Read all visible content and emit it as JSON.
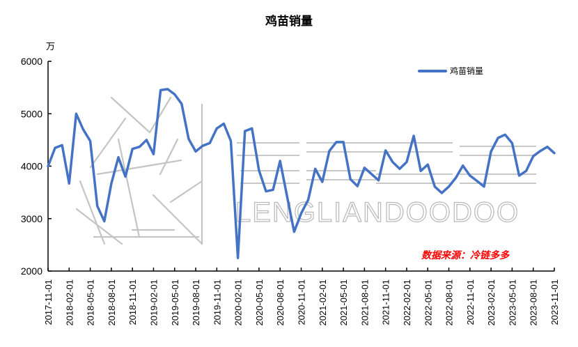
{
  "title": "鸡苗销量",
  "unit": "万",
  "legend": {
    "label": "鸡苗销量",
    "color": "#4472C4"
  },
  "source": "数据来源：冷链多多",
  "watermark": {
    "text": "LENGLIANDOODOO",
    "cn": "冷链多多"
  },
  "chart_data": {
    "type": "line",
    "title": "鸡苗销量",
    "xlabel": "",
    "ylabel": "万",
    "ylim": [
      2000,
      6000
    ],
    "yticks": [
      2000,
      3000,
      4000,
      5000,
      6000
    ],
    "xtick_labels": [
      "2017-11-01",
      "2018-02-01",
      "2018-05-01",
      "2018-08-01",
      "2018-11-01",
      "2019-02-01",
      "2019-05-01",
      "2019-08-01",
      "2019-11-01",
      "2020-02-01",
      "2020-05-01",
      "2020-08-01",
      "2020-11-01",
      "2021-02-01",
      "2021-05-01",
      "2021-08-01",
      "2021-11-01",
      "2022-02-01",
      "2022-05-01",
      "2022-08-01",
      "2022-11-01",
      "2023-02-01",
      "2023-05-01",
      "2023-08-01",
      "2023-11-01"
    ],
    "grid": false,
    "legend_position": "top-right",
    "series": [
      {
        "name": "鸡苗销量",
        "color": "#4472C4",
        "x": [
          "2017-11",
          "2017-12",
          "2018-01",
          "2018-02",
          "2018-03",
          "2018-04",
          "2018-05",
          "2018-06",
          "2018-07",
          "2018-08",
          "2018-09",
          "2018-10",
          "2018-11",
          "2018-12",
          "2019-01",
          "2019-02",
          "2019-03",
          "2019-04",
          "2019-05",
          "2019-06",
          "2019-07",
          "2019-08",
          "2019-09",
          "2019-10",
          "2019-11",
          "2019-12",
          "2020-01",
          "2020-02",
          "2020-03",
          "2020-04",
          "2020-05",
          "2020-06",
          "2020-07",
          "2020-08",
          "2020-09",
          "2020-10",
          "2020-11",
          "2020-12",
          "2021-01",
          "2021-02",
          "2021-03",
          "2021-04",
          "2021-05",
          "2021-06",
          "2021-07",
          "2021-08",
          "2021-09",
          "2021-10",
          "2021-11",
          "2021-12",
          "2022-01",
          "2022-02",
          "2022-03",
          "2022-04",
          "2022-05",
          "2022-06",
          "2022-07",
          "2022-08",
          "2022-09",
          "2022-10",
          "2022-11",
          "2022-12",
          "2023-01",
          "2023-02",
          "2023-03",
          "2023-04",
          "2023-05",
          "2023-06",
          "2023-07",
          "2023-08",
          "2023-09",
          "2023-10",
          "2023-11"
        ],
        "values": [
          4000,
          4350,
          4400,
          3670,
          5000,
          4700,
          4480,
          3240,
          2950,
          3670,
          4170,
          3800,
          4330,
          4370,
          4500,
          4230,
          5450,
          5470,
          5370,
          5190,
          4520,
          4280,
          4390,
          4440,
          4720,
          4810,
          4480,
          2250,
          4670,
          4720,
          3920,
          3520,
          3550,
          4100,
          3420,
          2750,
          3100,
          3360,
          3950,
          3700,
          4290,
          4460,
          4460,
          3750,
          3620,
          3970,
          3850,
          3730,
          4300,
          4080,
          3950,
          4080,
          4580,
          3910,
          4030,
          3610,
          3490,
          3610,
          3780,
          4010,
          3820,
          3720,
          3610,
          4280,
          4540,
          4600,
          4440,
          3820,
          3910,
          4190,
          4290,
          4370,
          4250
        ]
      }
    ]
  }
}
